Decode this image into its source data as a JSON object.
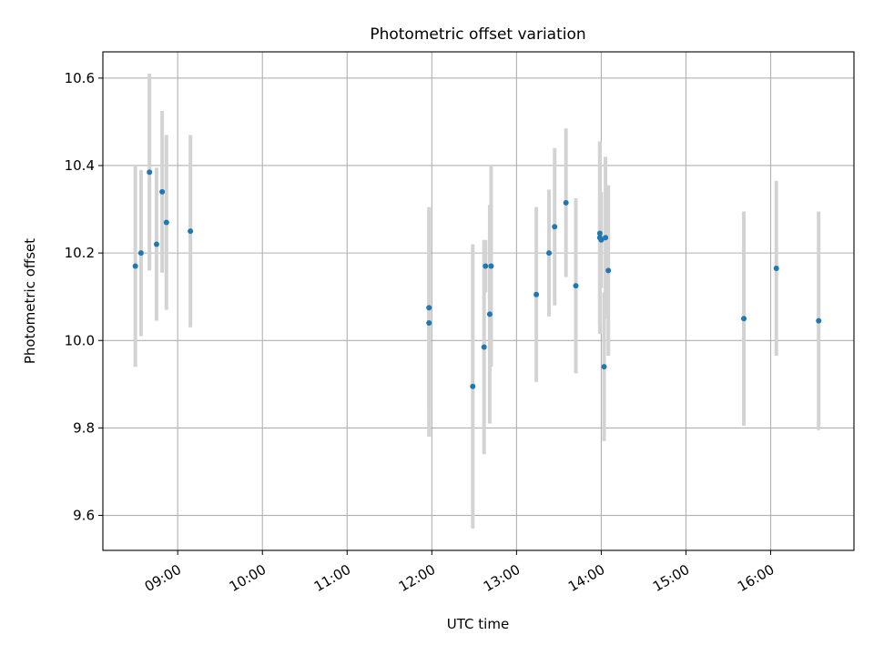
{
  "chart_data": {
    "type": "scatter",
    "title": "Photometric offset variation",
    "xlabel": "UTC time",
    "ylabel": "Photometric offset",
    "xlim": [
      "08:07",
      "16:59"
    ],
    "ylim": [
      9.52,
      10.66
    ],
    "grid": true,
    "colors": {
      "points": "#1f77b4",
      "errorbars": "#d3d3d3",
      "grid": "#b0b0b0"
    },
    "x_ticks": [
      "09:00",
      "10:00",
      "11:00",
      "12:00",
      "13:00",
      "14:00",
      "15:00",
      "16:00"
    ],
    "y_ticks": [
      "9.6",
      "9.8",
      "10.0",
      "10.2",
      "10.4",
      "10.6"
    ],
    "series": [
      {
        "points": [
          {
            "x": "08:30",
            "y": 10.17,
            "yerr": 0.23
          },
          {
            "x": "08:34",
            "y": 10.2,
            "yerr": 0.19
          },
          {
            "x": "08:40",
            "y": 10.385,
            "yerr": 0.225
          },
          {
            "x": "08:45",
            "y": 10.22,
            "yerr": 0.175
          },
          {
            "x": "08:49",
            "y": 10.34,
            "yerr": 0.185
          },
          {
            "x": "08:52",
            "y": 10.27,
            "yerr": 0.2
          },
          {
            "x": "09:09",
            "y": 10.25,
            "yerr": 0.22
          },
          {
            "x": "11:58",
            "y": 10.075,
            "yerr": 0.23
          },
          {
            "x": "11:58",
            "y": 10.04,
            "yerr": 0.26
          },
          {
            "x": "12:29",
            "y": 9.895,
            "yerr": 0.325
          },
          {
            "x": "12:37",
            "y": 9.985,
            "yerr": 0.245
          },
          {
            "x": "12:38",
            "y": 10.17,
            "yerr": 0.06
          },
          {
            "x": "12:41",
            "y": 10.06,
            "yerr": 0.25
          },
          {
            "x": "12:42",
            "y": 10.17,
            "yerr": 0.23
          },
          {
            "x": "13:14",
            "y": 10.105,
            "yerr": 0.2
          },
          {
            "x": "13:23",
            "y": 10.2,
            "yerr": 0.145
          },
          {
            "x": "13:27",
            "y": 10.26,
            "yerr": 0.18
          },
          {
            "x": "13:35",
            "y": 10.315,
            "yerr": 0.17
          },
          {
            "x": "13:42",
            "y": 10.125,
            "yerr": 0.2
          },
          {
            "x": "13:59",
            "y": 10.245,
            "yerr": 0.21
          },
          {
            "x": "13:59",
            "y": 10.235,
            "yerr": 0.22
          },
          {
            "x": "14:00",
            "y": 10.23,
            "yerr": 0.11
          },
          {
            "x": "14:02",
            "y": 9.94,
            "yerr": 0.17
          },
          {
            "x": "14:03",
            "y": 10.235,
            "yerr": 0.185
          },
          {
            "x": "14:05",
            "y": 10.16,
            "yerr": 0.195
          },
          {
            "x": "15:41",
            "y": 10.05,
            "yerr": 0.245
          },
          {
            "x": "16:04",
            "y": 10.165,
            "yerr": 0.2
          },
          {
            "x": "16:34",
            "y": 10.045,
            "yerr": 0.25
          }
        ]
      }
    ]
  }
}
